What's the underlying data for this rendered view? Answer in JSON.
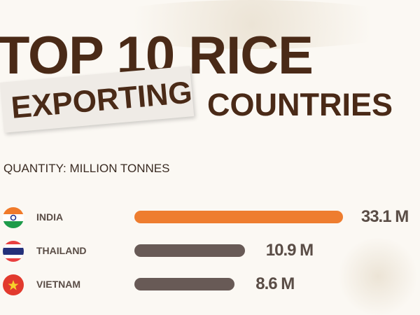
{
  "title_line1": "TOP 10 RICE",
  "title_highlight": "EXPORTING",
  "title_line2": "COUNTRIES",
  "subtitle": "QUANTITY: MILLION TONNES",
  "colors": {
    "highlight": "#ee7d2f",
    "bar": "#685a56",
    "title": "#4a2a17"
  },
  "chart_data": {
    "type": "bar",
    "orientation": "horizontal",
    "categories": [
      "INDIA",
      "THAILAND",
      "VIETNAM"
    ],
    "values": [
      33.1,
      10.9,
      8.6
    ],
    "labels": [
      "33.1 M",
      "10.9 M",
      "8.6 M"
    ],
    "unit": "million tonnes",
    "flags": [
      "india-flag-icon",
      "thailand-flag-icon",
      "vietnam-flag-icon"
    ]
  }
}
